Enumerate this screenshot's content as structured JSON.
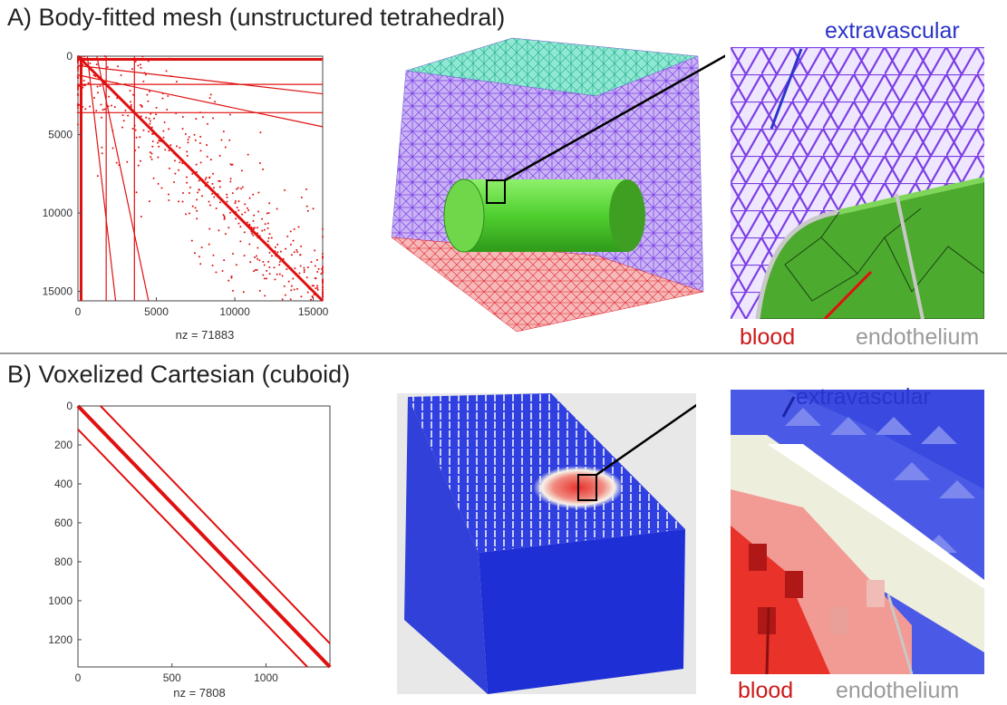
{
  "panel_a": {
    "title": "A) Body-fitted mesh (unstructured tetrahedral)",
    "labels": {
      "extravascular": "extravascular",
      "blood": "blood",
      "endothelium": "endothelium"
    }
  },
  "panel_b": {
    "title": "B) Voxelized Cartesian (cuboid)",
    "labels": {
      "extravascular": "extravascular",
      "blood": "blood",
      "endothelium": "endothelium"
    }
  },
  "colors": {
    "sparsity_red": "#e01010",
    "mesh_purple": "#7b3fe4",
    "mesh_teal": "#30c9a8",
    "mesh_red": "#e0202a",
    "vessel_green": "#4fcf2f",
    "label_blue": "#2a34c8",
    "label_red": "#cc1a1a",
    "label_gray": "#9a9a9a",
    "voxel_blue": "#2f3fe0"
  },
  "chart_data": [
    {
      "type": "scatter",
      "title": "",
      "xlabel": "nz = 71883",
      "ylabel": "",
      "xlim": [
        0,
        15600
      ],
      "ylim": [
        0,
        15600
      ],
      "y_inverted": true,
      "x_ticks": [
        0,
        5000,
        10000,
        15000
      ],
      "y_ticks": [
        0,
        5000,
        10000,
        15000
      ],
      "x_tick_labels": [
        "0",
        "5000",
        "10000",
        "15000"
      ],
      "y_tick_labels": [
        "0",
        "5000",
        "10000",
        "15000"
      ],
      "nz": 71883,
      "pattern": "unstructured sparsity: dense main diagonal plus scattered off-diagonal entries"
    },
    {
      "type": "scatter",
      "title": "",
      "xlabel": "nz = 7808",
      "ylabel": "",
      "xlim": [
        0,
        1340
      ],
      "ylim": [
        0,
        1340
      ],
      "y_inverted": true,
      "x_ticks": [
        0,
        500,
        1000
      ],
      "y_ticks": [
        0,
        200,
        400,
        600,
        800,
        1000,
        1200
      ],
      "x_tick_labels": [
        "0",
        "500",
        "1000"
      ],
      "y_tick_labels": [
        "0",
        "200",
        "400",
        "600",
        "800",
        "1000",
        "1200"
      ],
      "nz": 7808,
      "diagonal_offsets": [
        -120,
        0,
        120
      ],
      "pattern": "banded: main diagonal and two off-diagonals"
    }
  ]
}
